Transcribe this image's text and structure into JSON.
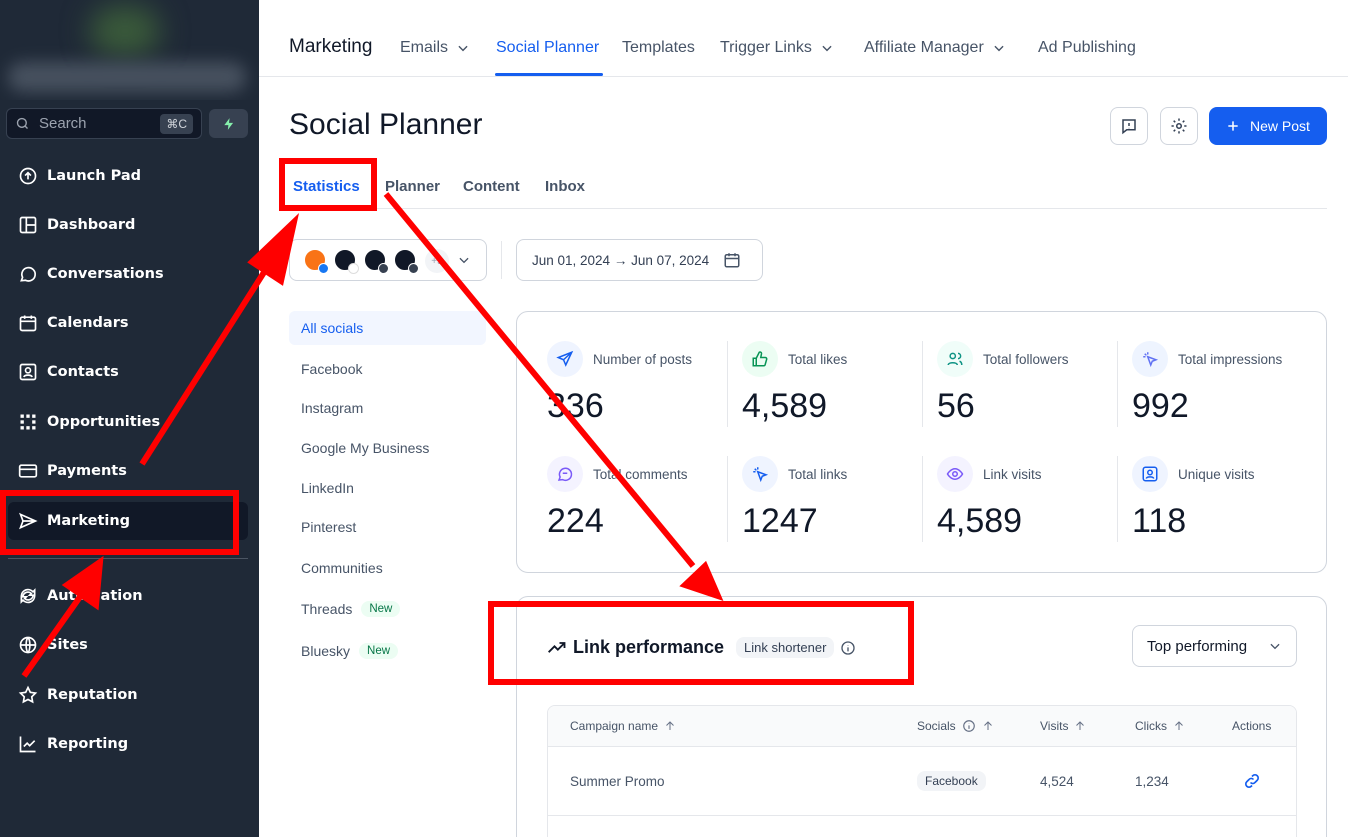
{
  "sidebar": {
    "search": {
      "placeholder": "Search",
      "shortcut": "⌘C"
    },
    "items": [
      {
        "label": "Launch Pad",
        "icon": "rocket-circle-icon"
      },
      {
        "label": "Dashboard",
        "icon": "dashboard-icon"
      },
      {
        "label": "Conversations",
        "icon": "chat-bubble-icon"
      },
      {
        "label": "Calendars",
        "icon": "calendar-icon"
      },
      {
        "label": "Contacts",
        "icon": "contact-card-icon"
      },
      {
        "label": "Opportunities",
        "icon": "opportunities-icon"
      },
      {
        "label": "Payments",
        "icon": "credit-card-icon"
      },
      {
        "label": "Marketing",
        "icon": "send-icon",
        "active": true
      },
      {
        "label": "Automation",
        "icon": "refresh-icon"
      },
      {
        "label": "Sites",
        "icon": "globe-icon"
      },
      {
        "label": "Reputation",
        "icon": "star-icon"
      },
      {
        "label": "Reporting",
        "icon": "chart-icon"
      }
    ]
  },
  "topnav": {
    "title": "Marketing",
    "items": [
      {
        "label": "Emails",
        "dropdown": true
      },
      {
        "label": "Social Planner",
        "active": true
      },
      {
        "label": "Templates"
      },
      {
        "label": "Trigger Links",
        "dropdown": true
      },
      {
        "label": "Affiliate Manager",
        "dropdown": true
      },
      {
        "label": "Ad Publishing"
      }
    ]
  },
  "page": {
    "title": "Social Planner",
    "new_post_label": "New Post",
    "tabs": [
      "Statistics",
      "Planner",
      "Content",
      "Inbox"
    ],
    "active_tab": "Statistics"
  },
  "filters": {
    "accounts_more": "+5",
    "date_range": "Jun 01, 2024 → Jun 07, 2024"
  },
  "socials": [
    {
      "label": "All socials",
      "active": true
    },
    {
      "label": "Facebook"
    },
    {
      "label": "Instagram"
    },
    {
      "label": "Google My Business"
    },
    {
      "label": "LinkedIn"
    },
    {
      "label": "Pinterest"
    },
    {
      "label": "Communities"
    },
    {
      "label": "Threads",
      "badge": "New"
    },
    {
      "label": "Bluesky",
      "badge": "New"
    }
  ],
  "stats": [
    {
      "label": "Number of posts",
      "value": "336",
      "icon": "paper-plane-icon",
      "color": "#155eef",
      "bg": "#eff4ff"
    },
    {
      "label": "Total likes",
      "value": "4,589",
      "icon": "thumbs-up-icon",
      "color": "#079455",
      "bg": "#ecfdf3"
    },
    {
      "label": "Total followers",
      "value": "56",
      "icon": "users-icon",
      "color": "#0e9384",
      "bg": "#f0fdf9"
    },
    {
      "label": "Total impressions",
      "value": "992",
      "icon": "cursor-click-icon",
      "color": "#6172f3",
      "bg": "#eef4ff"
    },
    {
      "label": "Total comments",
      "value": "224",
      "icon": "message-icon",
      "color": "#7a5af8",
      "bg": "#f4f3ff"
    },
    {
      "label": "Total links",
      "value": "1247",
      "icon": "cursor-click-icon",
      "color": "#155eef",
      "bg": "#eff4ff"
    },
    {
      "label": "Link visits",
      "value": "4,589",
      "icon": "eye-icon",
      "color": "#7a5af8",
      "bg": "#f4f3ff"
    },
    {
      "label": "Unique visits",
      "value": "118",
      "icon": "user-square-icon",
      "color": "#155eef",
      "bg": "#eff4ff"
    }
  ],
  "link_performance": {
    "title": "Link performance",
    "badge": "Link shortener",
    "sort_select": "Top performing",
    "columns": [
      "Campaign name",
      "Socials",
      "Visits",
      "Clicks",
      "Actions"
    ],
    "rows": [
      {
        "campaign": "Summer Promo",
        "social": "Facebook",
        "visits": "4,524",
        "clicks": "1,234"
      }
    ]
  },
  "colors": {
    "accent": "#155eef",
    "sidebar": "#1f2937",
    "annotation": "#ff0000"
  }
}
